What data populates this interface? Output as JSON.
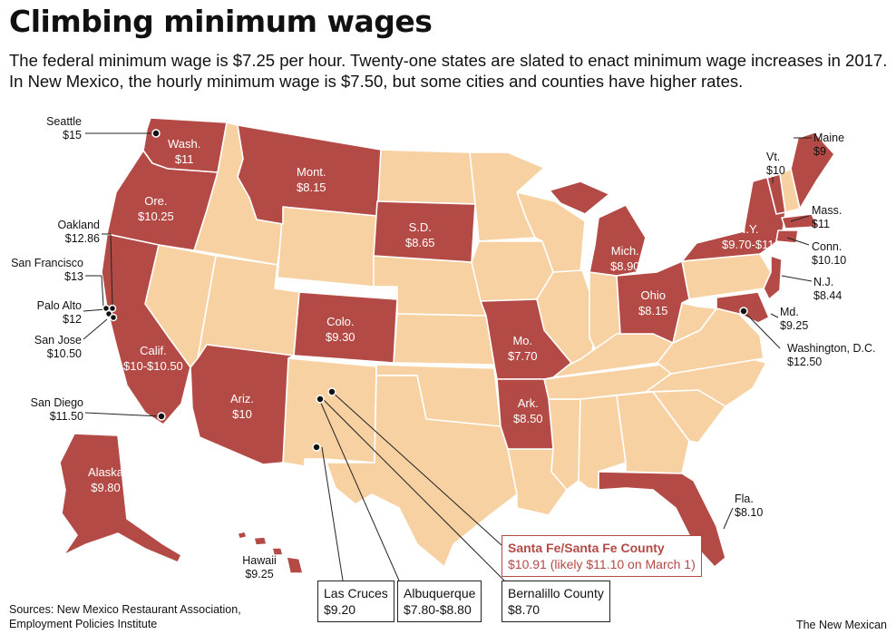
{
  "title": "Climbing minimum wages",
  "subtitle": "The federal minimum wage is $7.25 per hour. Twenty-one states are slated to enact minimum wage increases in 2017. In New Mexico, the hourly minimum wage is $7.50, but some cities and counties have higher rates.",
  "colors": {
    "increase": "#b44a45",
    "no_increase": "#f8d1a2",
    "border": "#ffffff",
    "highlight": "#b44a45"
  },
  "states": [
    {
      "name": "Wash.",
      "wage": "$11"
    },
    {
      "name": "Ore.",
      "wage": "$10.25"
    },
    {
      "name": "Calif.",
      "wage": "$10-$10.50"
    },
    {
      "name": "Ariz.",
      "wage": "$10"
    },
    {
      "name": "Mont.",
      "wage": "$8.15"
    },
    {
      "name": "Colo.",
      "wage": "$9.30"
    },
    {
      "name": "S.D.",
      "wage": "$8.65"
    },
    {
      "name": "Mo.",
      "wage": "$7.70"
    },
    {
      "name": "Ark.",
      "wage": "$8.50"
    },
    {
      "name": "Mich.",
      "wage": "$8.90"
    },
    {
      "name": "Ohio",
      "wage": "$8.15"
    },
    {
      "name": "N.Y.",
      "wage": "$9.70-$11"
    },
    {
      "name": "Alaska",
      "wage": "$9.80"
    }
  ],
  "callouts": [
    {
      "name": "Seattle",
      "wage": "$15"
    },
    {
      "name": "Oakland",
      "wage": "$12.86"
    },
    {
      "name": "San Francisco",
      "wage": "$13"
    },
    {
      "name": "Palo Alto",
      "wage": "$12"
    },
    {
      "name": "San Jose",
      "wage": "$10.50"
    },
    {
      "name": "San Diego",
      "wage": "$11.50"
    },
    {
      "name": "Hawaii",
      "wage": "$9.25"
    },
    {
      "name": "Maine",
      "wage": "$9"
    },
    {
      "name": "Vt.",
      "wage": "$10"
    },
    {
      "name": "Mass.",
      "wage": "$11"
    },
    {
      "name": "Conn.",
      "wage": "$10.10"
    },
    {
      "name": "N.J.",
      "wage": "$8.44"
    },
    {
      "name": "Md.",
      "wage": "$9.25"
    },
    {
      "name": "Washington, D.C.",
      "wage": "$12.50"
    },
    {
      "name": "Fla.",
      "wage": "$8.10"
    }
  ],
  "nm_boxes": [
    {
      "name": "Las Cruces",
      "wage": "$9.20"
    },
    {
      "name": "Albuquerque",
      "wage": "$7.80-$8.80"
    },
    {
      "name": "Bernalillo County",
      "wage": "$8.70"
    },
    {
      "name": "Santa Fe/Santa Fe County",
      "wage": "$10.91 (likely $11.10 on March 1)"
    }
  ],
  "sources": "Sources: New Mexico Restaurant Association, Employment Policies Institute",
  "credit": "The New Mexican"
}
